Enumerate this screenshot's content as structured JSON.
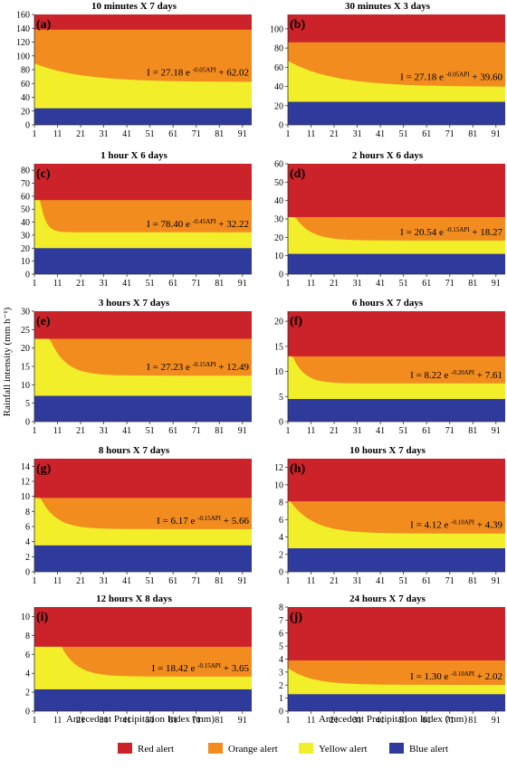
{
  "figure": {
    "ylabel": "Rainfall intensity (mm h⁻¹)",
    "xlabel": "Antecedent Precipitation Index (mm)",
    "legend": [
      {
        "label": "Red alert",
        "color": "#cc2229"
      },
      {
        "label": "Orange alert",
        "color": "#f28c1f"
      },
      {
        "label": "Yellow alert",
        "color": "#f2ee2a"
      },
      {
        "label": "Blue alert",
        "color": "#2e3a9c"
      }
    ]
  },
  "chart_data": [
    {
      "type": "area",
      "tag": "(a)",
      "title": "10 minutes X 7 days",
      "eq": {
        "prefix": "I = 27.18 e",
        "exp": "-0.05API",
        "suffix": " + 62.02"
      },
      "a": 27.18,
      "b": 0.05,
      "c": 62.02,
      "x0": 1,
      "x": [
        1,
        95
      ],
      "ylim": [
        0,
        160
      ],
      "yticks": [
        0,
        20,
        40,
        60,
        80,
        100,
        120,
        140,
        160
      ],
      "xticks": [
        1,
        11,
        21,
        31,
        41,
        51,
        61,
        71,
        81,
        91
      ],
      "blue_max": 24,
      "orange_max": 138
    },
    {
      "type": "area",
      "tag": "(b)",
      "title": "30 minutes X 3 days",
      "eq": {
        "prefix": "I = 27.18 e",
        "exp": "-0.05API",
        "suffix": " + 39.60"
      },
      "a": 27.18,
      "b": 0.05,
      "c": 39.6,
      "x0": 1,
      "x": [
        1,
        95
      ],
      "ylim": [
        0,
        115
      ],
      "yticks": [
        0,
        20,
        40,
        60,
        80,
        100
      ],
      "xticks": [
        1,
        11,
        21,
        31,
        41,
        51,
        61,
        71,
        81,
        91
      ],
      "blue_max": 24,
      "orange_max": 86
    },
    {
      "type": "area",
      "tag": "(c)",
      "title": "1 hour X 6 days",
      "eq": {
        "prefix": "I = 78.40 e",
        "exp": "-0.45API",
        "suffix": " + 32.22"
      },
      "a": 78.4,
      "b": 0.45,
      "c": 32.22,
      "x0": 1,
      "x": [
        1,
        95
      ],
      "ylim": [
        0,
        85
      ],
      "yticks": [
        0,
        10,
        20,
        30,
        40,
        50,
        60,
        70,
        80
      ],
      "xticks": [
        1,
        11,
        21,
        31,
        41,
        51,
        61,
        71,
        81,
        91
      ],
      "blue_max": 20,
      "orange_max": 57
    },
    {
      "type": "area",
      "tag": "(d)",
      "title": "2 hours X 6 days",
      "eq": {
        "prefix": "I = 20.54 e",
        "exp": "-0.15API",
        "suffix": " + 18.27"
      },
      "a": 20.54,
      "b": 0.15,
      "c": 18.27,
      "x0": 1,
      "x": [
        1,
        95
      ],
      "ylim": [
        0,
        60
      ],
      "yticks": [
        0,
        10,
        20,
        30,
        40,
        50,
        60
      ],
      "xticks": [
        1,
        11,
        21,
        31,
        41,
        51,
        61,
        71,
        81,
        91
      ],
      "blue_max": 11,
      "orange_max": 31
    },
    {
      "type": "area",
      "tag": "(e)",
      "title": "3 hours X 7 days",
      "eq": {
        "prefix": "I = 27.23 e",
        "exp": "-0.15API",
        "suffix": " + 12.49"
      },
      "a": 27.23,
      "b": 0.15,
      "c": 12.49,
      "x0": 1,
      "x": [
        1,
        95
      ],
      "ylim": [
        0,
        30
      ],
      "yticks": [
        0,
        5,
        10,
        15,
        20,
        25,
        30
      ],
      "xticks": [
        1,
        11,
        21,
        31,
        41,
        51,
        61,
        71,
        81,
        91
      ],
      "blue_max": 7,
      "orange_max": 22.5
    },
    {
      "type": "area",
      "tag": "(f)",
      "title": "6 hours X 7 days",
      "eq": {
        "prefix": "I = 8.22 e",
        "exp": "-0.20API",
        "suffix": " + 7.61"
      },
      "a": 8.22,
      "b": 0.2,
      "c": 7.61,
      "x0": 1,
      "x": [
        1,
        95
      ],
      "ylim": [
        0,
        22
      ],
      "yticks": [
        0,
        5,
        10,
        15,
        20
      ],
      "xticks": [
        1,
        11,
        21,
        31,
        41,
        51,
        61,
        71,
        81,
        91
      ],
      "blue_max": 4.5,
      "orange_max": 13
    },
    {
      "type": "area",
      "tag": "(g)",
      "title": "8 hours X 7 days",
      "eq": {
        "prefix": "I = 6.17 e",
        "exp": "-0.15API",
        "suffix": " + 5.66"
      },
      "a": 6.17,
      "b": 0.15,
      "c": 5.66,
      "x0": 1,
      "x": [
        1,
        95
      ],
      "ylim": [
        0,
        15
      ],
      "yticks": [
        0,
        2,
        4,
        6,
        8,
        10,
        12,
        14
      ],
      "xticks": [
        1,
        11,
        21,
        31,
        41,
        51,
        61,
        71,
        81,
        91
      ],
      "blue_max": 3.5,
      "orange_max": 9.8
    },
    {
      "type": "area",
      "tag": "(h)",
      "title": "10 hours X 7 days",
      "eq": {
        "prefix": "I = 4.12 e",
        "exp": "-0.10API",
        "suffix": " + 4.39"
      },
      "a": 4.12,
      "b": 0.1,
      "c": 4.39,
      "x0": 1,
      "x": [
        1,
        95
      ],
      "ylim": [
        0,
        13
      ],
      "yticks": [
        0,
        2,
        4,
        6,
        8,
        10,
        12
      ],
      "xticks": [
        1,
        11,
        21,
        31,
        41,
        51,
        61,
        71,
        81,
        91
      ],
      "blue_max": 2.7,
      "orange_max": 8.1
    },
    {
      "type": "area",
      "tag": "(i)",
      "title": "12 hours X 8 days",
      "eq": {
        "prefix": "I = 18.42 e",
        "exp": "-0.15API",
        "suffix": " + 3.65"
      },
      "a": 18.42,
      "b": 0.15,
      "c": 3.65,
      "x0": 1,
      "x": [
        1,
        95
      ],
      "ylim": [
        0,
        11
      ],
      "yticks": [
        0,
        2,
        4,
        6,
        8,
        10
      ],
      "xticks": [
        1,
        11,
        21,
        31,
        41,
        51,
        61,
        71,
        81,
        91
      ],
      "blue_max": 2.3,
      "orange_max": 6.8
    },
    {
      "type": "area",
      "tag": "(j)",
      "title": "24 hours X 7 days",
      "eq": {
        "prefix": "I = 1.30 e",
        "exp": "-0.10API",
        "suffix": " + 2.02"
      },
      "a": 1.3,
      "b": 0.1,
      "c": 2.02,
      "x0": 1,
      "x": [
        1,
        95
      ],
      "ylim": [
        0,
        8
      ],
      "yticks": [
        0,
        1,
        2,
        3,
        4,
        5,
        6,
        7,
        8
      ],
      "xticks": [
        1,
        11,
        21,
        31,
        41,
        51,
        61,
        71,
        81,
        91
      ],
      "blue_max": 1.3,
      "orange_max": 3.9
    }
  ]
}
